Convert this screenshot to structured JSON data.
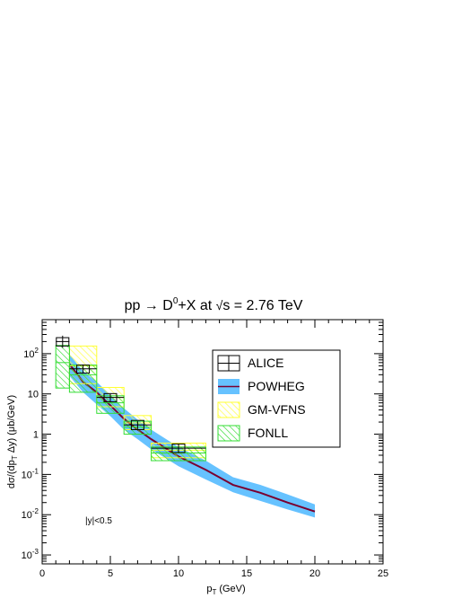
{
  "chart_data": {
    "type": "line",
    "title": {
      "process": "pp → D",
      "sup": "0",
      "rest": "+X at ",
      "sqrt": "√",
      "energy": "s = 2.76 TeV"
    },
    "xlabel": {
      "main": "p",
      "sub": "T",
      "unit": "(GeV)"
    },
    "ylabel": {
      "a": "dσ/(dp",
      "sub1": "T",
      "b": " Δy) (μb/GeV)"
    },
    "xlim": [
      0,
      25
    ],
    "ylim": [
      0.0006,
      700
    ],
    "y_scale": "log",
    "x_ticks": [
      0,
      5,
      10,
      15,
      20,
      25
    ],
    "x_tick_labels": [
      "0",
      "5",
      "10",
      "15",
      "20",
      "25"
    ],
    "y_ticks": [
      0.001,
      0.01,
      0.1,
      1,
      10,
      100
    ],
    "y_tick_labels": [
      {
        "base": "10",
        "exp": "-3"
      },
      {
        "base": "10",
        "exp": "-2"
      },
      {
        "base": "10",
        "exp": "-1"
      },
      {
        "base": "1",
        "exp": ""
      },
      {
        "base": "10",
        "exp": ""
      },
      {
        "base": "10",
        "exp": "2"
      }
    ],
    "annotation": "|y|<0.5",
    "legend_position": "top-right",
    "legend": [
      "ALICE",
      "POWHEG",
      "GM-VFNS",
      "FONLL"
    ],
    "colors": {
      "alice": "#000000",
      "powheg_band": "#66c2ff",
      "powheg_line": "#7a0030",
      "gmvfns": "#ffff33",
      "fonll": "#33dd33"
    },
    "series": [
      {
        "name": "ALICE",
        "kind": "points",
        "points": [
          {
            "x": 1.5,
            "y": 200,
            "xerr": 0.5,
            "ylo": 140,
            "yhi": 280,
            "syslo": 155,
            "syshi": 250
          },
          {
            "x": 3,
            "y": 42,
            "xerr": 1,
            "ylo": 32,
            "yhi": 54,
            "syslo": 33,
            "syshi": 52
          },
          {
            "x": 5,
            "y": 8.2,
            "xerr": 1,
            "ylo": 6.5,
            "yhi": 10,
            "syslo": 6.4,
            "syshi": 10.2
          },
          {
            "x": 7,
            "y": 1.7,
            "xerr": 1,
            "ylo": 1.35,
            "yhi": 2.1,
            "syslo": 1.3,
            "syshi": 2.2
          },
          {
            "x": 10,
            "y": 0.45,
            "xerr": 2,
            "ylo": 0.34,
            "yhi": 0.58,
            "syslo": 0.35,
            "syshi": 0.57
          }
        ]
      },
      {
        "name": "POWHEG",
        "kind": "band",
        "x": [
          2,
          3,
          4,
          5,
          6,
          7,
          8,
          10,
          12,
          14,
          16,
          18,
          20
        ],
        "central": [
          55,
          20,
          11,
          5.2,
          2.4,
          1.3,
          0.75,
          0.28,
          0.13,
          0.055,
          0.035,
          0.02,
          0.012
        ],
        "lower": [
          28,
          11,
          5.5,
          2.8,
          1.3,
          0.75,
          0.42,
          0.16,
          0.075,
          0.036,
          0.022,
          0.0135,
          0.0085
        ],
        "upper": [
          95,
          37,
          20,
          9.5,
          4.4,
          2.3,
          1.3,
          0.48,
          0.22,
          0.085,
          0.055,
          0.032,
          0.018
        ]
      },
      {
        "name": "GM-VFNS",
        "kind": "boxes",
        "boxes": [
          {
            "x0": 2,
            "x1": 4,
            "lo": 18,
            "hi": 155,
            "c": 50
          },
          {
            "x0": 4,
            "x1": 6,
            "lo": 4.8,
            "hi": 14.5,
            "c": 8.2
          },
          {
            "x0": 6,
            "x1": 8,
            "lo": 1.3,
            "hi": 2.9,
            "c": 1.9
          },
          {
            "x0": 8,
            "x1": 12,
            "lo": 0.26,
            "hi": 0.6,
            "c": 0.4
          }
        ]
      },
      {
        "name": "FONLL",
        "kind": "boxes",
        "boxes": [
          {
            "x0": 1,
            "x1": 2,
            "lo": 14,
            "hi": 160,
            "c": 60
          },
          {
            "x0": 2,
            "x1": 4,
            "lo": 11,
            "hi": 52,
            "c": 30
          },
          {
            "x0": 4,
            "x1": 6,
            "lo": 3.3,
            "hi": 9,
            "c": 6
          },
          {
            "x0": 6,
            "x1": 8,
            "lo": 1.0,
            "hi": 2.1,
            "c": 1.5
          },
          {
            "x0": 8,
            "x1": 12,
            "lo": 0.22,
            "hi": 0.48,
            "c": 0.34
          }
        ]
      }
    ]
  }
}
